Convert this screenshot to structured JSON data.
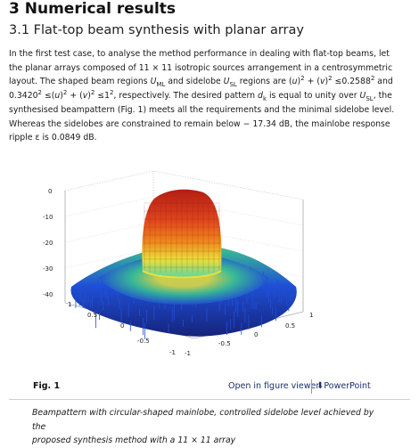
{
  "section": {
    "heading": "3 Numerical results",
    "subheading": "3.1 Flat-top beam synthesis with planar array"
  },
  "paragraph": {
    "line1": "In the first test case, to analyse the method performance in dealing with flat-top beams, let",
    "line2": "the planar arrays composed of 11 × 11 isotropic sources arrangement in a centrosymmetric",
    "line3a": "layout. The shaped beam regions ",
    "line3b": "U",
    "line3c": "ML",
    "line3d": " and sidelobe ",
    "line3e": "U",
    "line3f": "SL",
    "line3g": " regions are (",
    "line3h": "u",
    "line3i": ")",
    "line3j": "2",
    "line3k": " + (",
    "line3l": "v",
    "line3m": ")",
    "line3n": "2",
    "line3o": " ≤0.2588",
    "line3p": "2",
    "line3q": " and",
    "line4a": "0.3420",
    "line4b": "2",
    "line4c": " ≤(",
    "line4d": "u",
    "line4e": ")",
    "line4f": "2",
    "line4g": " + (",
    "line4h": "v",
    "line4i": ")",
    "line4j": "2",
    "line4k": " ≤1",
    "line4l": "2",
    "line4m": ", respectively. The desired pattern ",
    "line4n": "d",
    "line4o": "k",
    "line4p": " is equal to unity over ",
    "line4q": "U",
    "line4r": "SL",
    "line4s": ", the",
    "line5": "synthesised beampattern (Fig. 1) meets all the requirements and the minimal sidelobe level.",
    "line6": "Whereas the sidelobes are constrained to remain below − 17.34 dB, the mainlobe response",
    "line7": "ripple ε is 0.0849 dB."
  },
  "figure": {
    "z_ticks": [
      "0",
      "-10",
      "-20",
      "-30",
      "-40"
    ],
    "v_ticks": [
      "1",
      "0.5",
      "0",
      "-0.5",
      "-1"
    ],
    "u_ticks": [
      "1",
      "0.5",
      "0",
      "-0.5",
      "-1"
    ],
    "colors": {
      "peak": "#b21d14",
      "high": "#f08a1e",
      "mid": "#e8e03a",
      "low": "#3cc88c",
      "floor": "#1f4fd6",
      "deep": "#16237a"
    }
  },
  "figure_footer": {
    "label": "Fig. 1",
    "open_link": "Open in figure viewer",
    "ppt_link": "PowerPoint",
    "download_icon": "download-icon"
  },
  "caption": {
    "line1": "Beampattern with circular-shaped mainlobe, controlled sidelobe level achieved by the",
    "line2": "proposed synthesis method with a 11 × 11 array"
  }
}
